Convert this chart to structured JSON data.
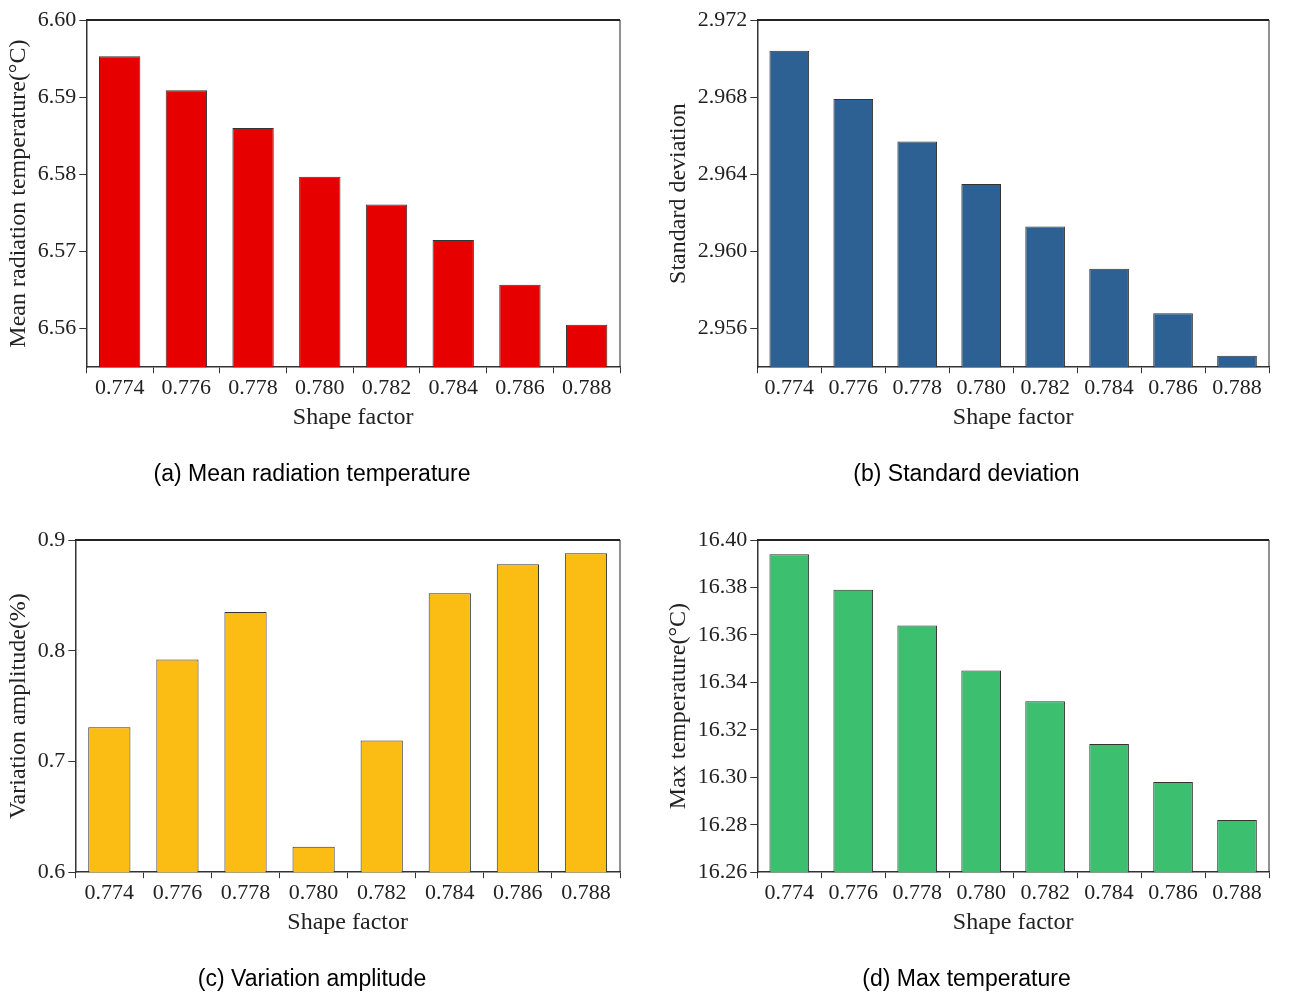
{
  "chart_data": [
    {
      "type": "bar",
      "title": "(a) Mean radiation temperature",
      "xlabel": "Shape factor",
      "ylabel": "Mean radiation temperature(°C)",
      "categories": [
        "0.774",
        "0.776",
        "0.778",
        "0.780",
        "0.782",
        "0.784",
        "0.786",
        "0.788"
      ],
      "values": [
        6.5953,
        6.5909,
        6.586,
        6.5797,
        6.5761,
        6.5715,
        6.5657,
        6.5605
      ],
      "color": "#e60000",
      "ylim": [
        6.555,
        6.6
      ],
      "yticks": [
        6.56,
        6.57,
        6.58,
        6.59,
        {
          "value": 6.6,
          "label": "6.60"
        }
      ],
      "grid": false
    },
    {
      "type": "bar",
      "title": "(b) Standard deviation",
      "xlabel": "Shape factor",
      "ylabel": "Standard deviation",
      "categories": [
        "0.774",
        "0.776",
        "0.778",
        "0.780",
        "0.782",
        "0.784",
        "0.786",
        "0.788"
      ],
      "values": [
        2.9704,
        2.9679,
        2.9657,
        2.9635,
        2.9613,
        2.9591,
        2.9568,
        2.9546
      ],
      "color": "#2e6193",
      "ylim": [
        2.954,
        2.972
      ],
      "yticks": [
        2.956,
        {
          "value": 2.96,
          "label": "2.960"
        },
        2.964,
        2.968,
        2.972
      ],
      "grid": false
    },
    {
      "type": "bar",
      "title": "(c) Variation amplitude",
      "xlabel": "Shape factor",
      "ylabel": "Variation amplitude(%)",
      "categories": [
        "0.774",
        "0.776",
        "0.778",
        "0.780",
        "0.782",
        "0.784",
        "0.786",
        "0.788"
      ],
      "values": [
        0.731,
        0.792,
        0.835,
        0.623,
        0.719,
        0.852,
        0.878,
        0.888
      ],
      "color": "#fbbc14",
      "ylim": [
        0.6,
        0.9
      ],
      "yticks": [
        0.6,
        0.7,
        0.8,
        0.9
      ],
      "grid": false
    },
    {
      "type": "bar",
      "title": "(d) Max temperature",
      "xlabel": "Shape factor",
      "ylabel": "Max temperature(°C)",
      "categories": [
        "0.774",
        "0.776",
        "0.778",
        "0.780",
        "0.782",
        "0.784",
        "0.786",
        "0.788"
      ],
      "values": [
        16.394,
        16.379,
        16.364,
        16.345,
        16.332,
        16.314,
        16.298,
        16.282
      ],
      "color": "#3cbf6e",
      "ylim": [
        16.26,
        16.4
      ],
      "yticks": [
        16.26,
        16.28,
        {
          "value": 16.3,
          "label": "16.30"
        },
        16.32,
        16.34,
        16.36,
        16.38,
        {
          "value": 16.4,
          "label": "16.40"
        }
      ],
      "grid": false
    }
  ]
}
